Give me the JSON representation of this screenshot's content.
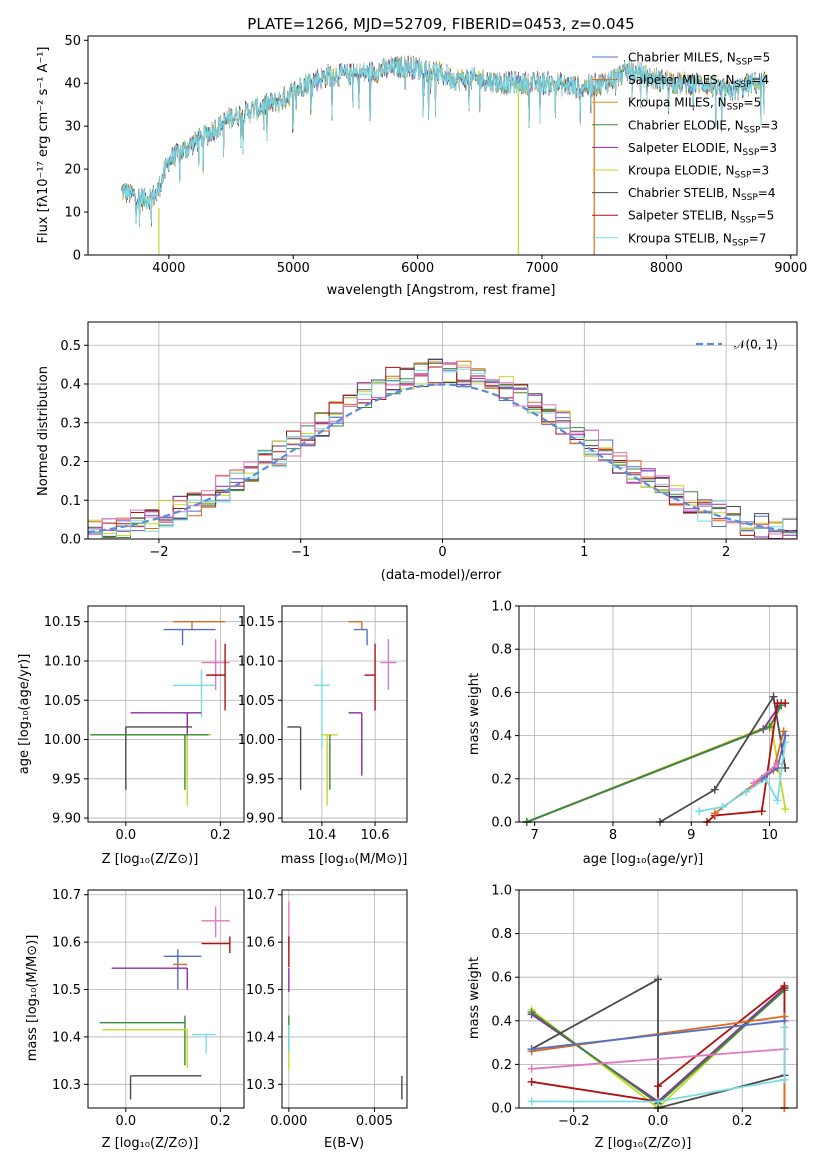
{
  "colors": {
    "chabrier_miles": "#5470c6",
    "salpeter_miles": "#dd6b1e",
    "kroupa_miles": "#e08a22",
    "chabrier_elodie": "#3a8a3a",
    "salpeter_elodie": "#8e2aa8",
    "kroupa_elodie": "#c8d62a",
    "chabrier_stelib": "#4a4a4a",
    "salpeter_stelib": "#b01010",
    "kroupa_stelib": "#7adbe6",
    "pink": "#e377c2",
    "normal_line": "#5b8bd9",
    "grid": "#b0b0b0"
  },
  "chart_data": [
    {
      "id": "spectrum",
      "type": "line",
      "title": "PLATE=1266, MJD=52709, FIBERID=0453, z=0.045",
      "xlabel": "wavelength [Angstrom, rest frame]",
      "ylabel": "Flux [fλ10⁻¹⁷ erg cm⁻² s⁻¹ A⁻¹]",
      "xlim": [
        3350,
        9050
      ],
      "ylim": [
        0,
        51
      ],
      "xticks": [
        "4000",
        "5000",
        "6000",
        "7000",
        "8000",
        "9000"
      ],
      "yticks": [
        "0",
        "10",
        "20",
        "30",
        "40",
        "50"
      ],
      "legend_position": "top-right",
      "legend": [
        {
          "label": "Chabrier MILES, N",
          "sub": "SSP",
          "suffix": "=5",
          "color": "#5470c6"
        },
        {
          "label": "Salpeter MILES, N",
          "sub": "SSP",
          "suffix": "=4",
          "color": "#dd6b1e"
        },
        {
          "label": "Kroupa MILES, N",
          "sub": "SSP",
          "suffix": "=5",
          "color": "#e08a22"
        },
        {
          "label": "Chabrier ELODIE, N",
          "sub": "SSP",
          "suffix": "=3",
          "color": "#3a8a3a"
        },
        {
          "label": "Salpeter ELODIE, N",
          "sub": "SSP",
          "suffix": "=3",
          "color": "#8e2aa8"
        },
        {
          "label": "Kroupa ELODIE, N",
          "sub": "SSP",
          "suffix": "=3",
          "color": "#c8d62a"
        },
        {
          "label": "Chabrier STELIB, N",
          "sub": "SSP",
          "suffix": "=4",
          "color": "#4a4a4a"
        },
        {
          "label": "Salpeter STELIB, N",
          "sub": "SSP",
          "suffix": "=5",
          "color": "#b01010"
        },
        {
          "label": "Kroupa STELIB, N",
          "sub": "SSP",
          "suffix": "=7",
          "color": "#7adbe6"
        }
      ],
      "continuum_knots": [
        [
          3620,
          15
        ],
        [
          3800,
          13
        ],
        [
          3900,
          14
        ],
        [
          4000,
          22
        ],
        [
          4100,
          24
        ],
        [
          4300,
          28
        ],
        [
          4500,
          32
        ],
        [
          4700,
          34
        ],
        [
          4900,
          36
        ],
        [
          5100,
          40
        ],
        [
          5300,
          42
        ],
        [
          5500,
          42
        ],
        [
          5700,
          43
        ],
        [
          5900,
          44
        ],
        [
          6100,
          43
        ],
        [
          6300,
          41
        ],
        [
          6500,
          41
        ],
        [
          6700,
          40
        ],
        [
          6900,
          40
        ],
        [
          7100,
          40
        ],
        [
          7300,
          39
        ],
        [
          7500,
          40
        ],
        [
          7700,
          43
        ],
        [
          7900,
          41
        ],
        [
          8100,
          40
        ],
        [
          8300,
          40
        ],
        [
          8500,
          38
        ],
        [
          8700,
          40
        ],
        [
          8800,
          40
        ]
      ],
      "drops": [
        {
          "x": 3920,
          "color": "#c8d62a",
          "from": 11
        },
        {
          "x": 6810,
          "color": "#c8d62a",
          "from": 40
        },
        {
          "x": 7420,
          "color": "#dd6b1e",
          "from": 39
        }
      ]
    },
    {
      "id": "residuals",
      "type": "line",
      "xlabel": "(data-model)/error",
      "ylabel": "Normed distribution",
      "xlim": [
        -2.5,
        2.5
      ],
      "ylim": [
        0,
        0.56
      ],
      "xticks": [
        "−2",
        "−1",
        "0",
        "1",
        "2"
      ],
      "yticks": [
        "0.0",
        "0.1",
        "0.2",
        "0.3",
        "0.4",
        "0.5"
      ],
      "legend_position": "top-right",
      "legend_label": "𝒩(0, 1)",
      "bin_width": 0.1,
      "x_start": -2.5,
      "histogram_colors": [
        "#5470c6",
        "#dd6b1e",
        "#3a8a3a",
        "#8e2aa8",
        "#c8d62a",
        "#4a4a4a",
        "#b01010",
        "#7adbe6",
        "#e377c2"
      ]
    },
    {
      "id": "age_vs_z",
      "type": "scatter",
      "xlabel": "Z [log₁₀(Z/Z⊙)]",
      "ylabel": "age  [log₁₀(age/yr)]",
      "xlim": [
        -0.08,
        0.25
      ],
      "ylim": [
        9.895,
        10.17
      ],
      "xticks": [
        "0.0",
        "0.2"
      ],
      "yticks": [
        "9.90",
        "9.95",
        "10.00",
        "10.05",
        "10.10",
        "10.15"
      ],
      "points": [
        {
          "x": 0.14,
          "y": 10.15,
          "xerr": [
            0.04,
            0.07
          ],
          "yerr": [
            0.01,
            0.0
          ],
          "color": "#dd6b1e"
        },
        {
          "x": 0.12,
          "y": 10.14,
          "xerr": [
            0.04,
            0.07
          ],
          "yerr": [
            0.02,
            0.0
          ],
          "color": "#5470c6"
        },
        {
          "x": 0.19,
          "y": 10.098,
          "xerr": [
            0.03,
            0.03
          ],
          "yerr": [
            0.035,
            0.03
          ],
          "color": "#e377c2"
        },
        {
          "x": 0.21,
          "y": 10.082,
          "xerr": [
            0.04,
            0.0
          ],
          "yerr": [
            0.045,
            0.04
          ],
          "color": "#b01010"
        },
        {
          "x": 0.16,
          "y": 10.069,
          "xerr": [
            0.06,
            0.03
          ],
          "yerr": [
            0.04,
            0.02
          ],
          "color": "#7adbe6"
        },
        {
          "x": 0.13,
          "y": 10.034,
          "xerr": [
            0.12,
            0.03
          ],
          "yerr": [
            0.08,
            0.0
          ],
          "color": "#8e2aa8"
        },
        {
          "x": 0.0,
          "y": 10.016,
          "xerr": [
            0.0,
            0.14
          ],
          "yerr": [
            0.08,
            0.0
          ],
          "color": "#4a4a4a"
        },
        {
          "x": 0.13,
          "y": 10.006,
          "xerr": [
            0.2,
            0.05
          ],
          "yerr": [
            0.09,
            0.0
          ],
          "color": "#c8d62a"
        },
        {
          "x": 0.125,
          "y": 10.006,
          "xerr": [
            0.2,
            0.05
          ],
          "yerr": [
            0.07,
            0.0
          ],
          "color": "#3a8a3a"
        }
      ]
    },
    {
      "id": "age_vs_mass",
      "type": "scatter",
      "xlabel": "mass [log₁₀(M/M⊙)]",
      "ylabel": "",
      "xlim": [
        10.25,
        10.72
      ],
      "ylim": [
        9.895,
        10.17
      ],
      "xticks": [
        "10.4",
        "10.6"
      ],
      "yticks": [
        "9.90",
        "9.95",
        "10.00",
        "10.05",
        "10.10",
        "10.15"
      ],
      "points": [
        {
          "x": 10.55,
          "y": 10.15,
          "xerr": [
            0.05,
            0.0
          ],
          "yerr": [
            0.01,
            0.0
          ],
          "color": "#dd6b1e"
        },
        {
          "x": 10.57,
          "y": 10.14,
          "xerr": [
            0.05,
            0.0
          ],
          "yerr": [
            0.02,
            0.0
          ],
          "color": "#5470c6"
        },
        {
          "x": 10.65,
          "y": 10.098,
          "xerr": [
            0.03,
            0.03
          ],
          "yerr": [
            0.035,
            0.03
          ],
          "color": "#e377c2"
        },
        {
          "x": 10.6,
          "y": 10.082,
          "xerr": [
            0.04,
            0.0
          ],
          "yerr": [
            0.045,
            0.04
          ],
          "color": "#b01010"
        },
        {
          "x": 10.4,
          "y": 10.069,
          "xerr": [
            0.03,
            0.03
          ],
          "yerr": [
            0.08,
            0.02
          ],
          "color": "#7adbe6"
        },
        {
          "x": 10.55,
          "y": 10.034,
          "xerr": [
            0.05,
            0.0
          ],
          "yerr": [
            0.08,
            0.0
          ],
          "color": "#8e2aa8"
        },
        {
          "x": 10.32,
          "y": 10.016,
          "xerr": [
            0.05,
            0.0
          ],
          "yerr": [
            0.08,
            0.0
          ],
          "color": "#4a4a4a"
        },
        {
          "x": 10.42,
          "y": 10.006,
          "xerr": [
            0.02,
            0.04
          ],
          "yerr": [
            0.09,
            0.0
          ],
          "color": "#c8d62a"
        },
        {
          "x": 10.43,
          "y": 10.006,
          "xerr": [
            0.0,
            0.0
          ],
          "yerr": [
            0.07,
            0.0
          ],
          "color": "#3a8a3a"
        }
      ]
    },
    {
      "id": "weight_vs_age",
      "type": "line",
      "xlabel": "age  [log₁₀(age/yr)]",
      "ylabel": "mass weight",
      "xlim": [
        6.8,
        10.35
      ],
      "ylim": [
        0,
        1.0
      ],
      "xticks": [
        "7",
        "8",
        "9",
        "10"
      ],
      "yticks": [
        "0.0",
        "0.2",
        "0.4",
        "0.6",
        "0.8",
        "1.0"
      ],
      "series": [
        {
          "color": "#c8d62a",
          "x": [
            6.9,
            10.02,
            10.2
          ],
          "y": [
            0.0,
            0.45,
            0.06
          ]
        },
        {
          "color": "#8e2aa8",
          "x": [
            6.9,
            9.92,
            10.15
          ],
          "y": [
            0.0,
            0.43,
            0.55
          ]
        },
        {
          "color": "#3a8a3a",
          "x": [
            6.9,
            10.0,
            10.15
          ],
          "y": [
            0.0,
            0.44,
            0.54
          ]
        },
        {
          "color": "#4a4a4a",
          "x": [
            8.6,
            9.3,
            10.05,
            10.2
          ],
          "y": [
            0.0,
            0.15,
            0.58,
            0.25
          ]
        },
        {
          "color": "#b01010",
          "x": [
            9.2,
            9.3,
            9.9,
            10.1,
            10.2
          ],
          "y": [
            0.0,
            0.03,
            0.05,
            0.55,
            0.55
          ]
        },
        {
          "color": "#dd6b1e",
          "x": [
            9.3,
            10.05,
            10.18
          ],
          "y": [
            0.04,
            0.24,
            0.42
          ]
        },
        {
          "color": "#7adbe6",
          "x": [
            9.1,
            9.4,
            9.7,
            9.95,
            10.1,
            10.2
          ],
          "y": [
            0.05,
            0.07,
            0.14,
            0.2,
            0.1,
            0.37
          ]
        },
        {
          "color": "#5470c6",
          "x": [
            9.9,
            10.1,
            10.2
          ],
          "y": [
            0.2,
            0.25,
            0.4
          ]
        },
        {
          "color": "#e377c2",
          "x": [
            9.8,
            10.1
          ],
          "y": [
            0.18,
            0.27
          ]
        }
      ]
    },
    {
      "id": "mass_vs_z",
      "type": "scatter",
      "xlabel": "Z [log₁₀(Z/Z⊙)]",
      "ylabel": "mass [log₁₀(M/M⊙)]",
      "xlim": [
        -0.08,
        0.25
      ],
      "ylim": [
        10.25,
        10.71
      ],
      "xticks": [
        "0.0",
        "0.2"
      ],
      "yticks": [
        "10.3",
        "10.4",
        "10.5",
        "10.6",
        "10.7"
      ],
      "points": [
        {
          "x": 0.19,
          "y": 10.645,
          "xerr": [
            0.03,
            0.03
          ],
          "yerr": [
            0.035,
            0.03
          ],
          "color": "#e377c2"
        },
        {
          "x": 0.22,
          "y": 10.597,
          "xerr": [
            0.06,
            0.0
          ],
          "yerr": [
            0.02,
            0.015
          ],
          "color": "#b01010"
        },
        {
          "x": 0.11,
          "y": 10.57,
          "xerr": [
            0.03,
            0.05
          ],
          "yerr": [
            0.07,
            0.015
          ],
          "color": "#5470c6"
        },
        {
          "x": 0.13,
          "y": 10.553,
          "xerr": [
            0.03,
            0.0
          ],
          "yerr": [
            0.0,
            0.0
          ],
          "color": "#dd6b1e"
        },
        {
          "x": 0.13,
          "y": 10.545,
          "xerr": [
            0.16,
            0.0
          ],
          "yerr": [
            0.045,
            0.0
          ],
          "color": "#8e2aa8"
        },
        {
          "x": 0.125,
          "y": 10.43,
          "xerr": [
            0.18,
            0.0
          ],
          "yerr": [
            0.09,
            0.015
          ],
          "color": "#3a8a3a"
        },
        {
          "x": 0.13,
          "y": 10.415,
          "xerr": [
            0.18,
            0.0
          ],
          "yerr": [
            0.08,
            0.0
          ],
          "color": "#c8d62a"
        },
        {
          "x": 0.17,
          "y": 10.405,
          "xerr": [
            0.03,
            0.02
          ],
          "yerr": [
            0.04,
            0.0
          ],
          "color": "#7adbe6"
        },
        {
          "x": 0.01,
          "y": 10.318,
          "xerr": [
            0.0,
            0.15
          ],
          "yerr": [
            0.05,
            0.0
          ],
          "color": "#4a4a4a"
        }
      ]
    },
    {
      "id": "mass_vs_ebv",
      "type": "scatter",
      "xlabel": "E(B-V)",
      "ylabel": "",
      "xlim": [
        -0.0004,
        0.0069
      ],
      "ylim": [
        10.25,
        10.71
      ],
      "xticks": [
        "0.000",
        "0.005"
      ],
      "yticks": [
        "10.3",
        "10.4",
        "10.5",
        "10.6",
        "10.7"
      ],
      "points": [
        {
          "x": 0.0,
          "y": 10.645,
          "xerr": [
            0.0,
            0.0
          ],
          "yerr": [
            0.06,
            0.04
          ],
          "color": "#e377c2"
        },
        {
          "x": 0.0,
          "y": 10.597,
          "xerr": [
            0.0,
            0.0
          ],
          "yerr": [
            0.05,
            0.015
          ],
          "color": "#b01010"
        },
        {
          "x": 0.0,
          "y": 10.545,
          "xerr": [
            0.0,
            0.0
          ],
          "yerr": [
            0.05,
            0.0
          ],
          "color": "#8e2aa8"
        },
        {
          "x": 0.0,
          "y": 10.43,
          "xerr": [
            0.0,
            0.0
          ],
          "yerr": [
            0.06,
            0.015
          ],
          "color": "#3a8a3a"
        },
        {
          "x": 0.0,
          "y": 10.405,
          "xerr": [
            0.0,
            0.0
          ],
          "yerr": [
            0.04,
            0.02
          ],
          "color": "#7adbe6"
        },
        {
          "x": 0.0,
          "y": 10.37,
          "xerr": [
            0.0,
            0.0
          ],
          "yerr": [
            0.04,
            0.0
          ],
          "color": "#c8d62a"
        },
        {
          "x": 0.0066,
          "y": 10.318,
          "xerr": [
            0.0,
            0.0
          ],
          "yerr": [
            0.05,
            0.0
          ],
          "color": "#4a4a4a"
        }
      ]
    },
    {
      "id": "weight_vs_z",
      "type": "line",
      "xlabel": "Z [log₁₀(Z/Z⊙)]",
      "ylabel": "mass weight",
      "xlim": [
        -0.33,
        0.33
      ],
      "ylim": [
        0,
        1.0
      ],
      "xticks": [
        "−0.2",
        "0.0",
        "0.2"
      ],
      "yticks": [
        "0.0",
        "0.2",
        "0.4",
        "0.6",
        "0.8",
        "1.0"
      ],
      "series": [
        {
          "color": "#c8d62a",
          "x": [
            -0.3,
            0.0,
            0.3
          ],
          "y": [
            0.45,
            0.0,
            0.55
          ]
        },
        {
          "color": "#8e2aa8",
          "x": [
            -0.3,
            0.0,
            0.3
          ],
          "y": [
            0.43,
            0.03,
            0.55
          ]
        },
        {
          "color": "#3a8a3a",
          "x": [
            -0.3,
            0.0,
            0.3
          ],
          "y": [
            0.44,
            0.02,
            0.54
          ]
        },
        {
          "color": "#4a4a4a",
          "x": [
            -0.3,
            0.0,
            0.0,
            0.3,
            0.3
          ],
          "y": [
            0.27,
            0.59,
            0.0,
            0.15,
            0.55
          ]
        },
        {
          "color": "#b01010",
          "x": [
            -0.3,
            0.0,
            0.0,
            0.3,
            0.3
          ],
          "y": [
            0.12,
            0.03,
            0.1,
            0.56,
            0.0
          ]
        },
        {
          "color": "#dd6b1e",
          "x": [
            -0.3,
            0.3,
            0.3
          ],
          "y": [
            0.26,
            0.42,
            0.0
          ]
        },
        {
          "color": "#5470c6",
          "x": [
            -0.3,
            0.3
          ],
          "y": [
            0.27,
            0.4
          ]
        },
        {
          "color": "#e377c2",
          "x": [
            -0.3,
            0.3
          ],
          "y": [
            0.18,
            0.27
          ]
        },
        {
          "color": "#7adbe6",
          "x": [
            -0.3,
            0.0,
            0.3,
            0.3
          ],
          "y": [
            0.03,
            0.03,
            0.13,
            0.37
          ]
        }
      ]
    }
  ]
}
